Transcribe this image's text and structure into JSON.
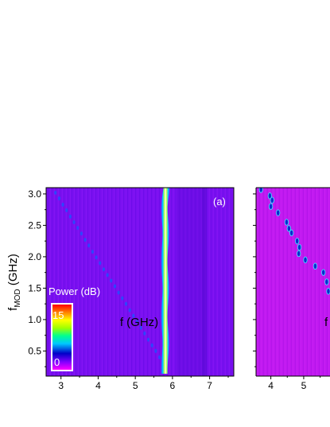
{
  "chart_data": [
    {
      "type": "heatmap",
      "panel_label": "(a)",
      "xlabel": "f (GHz)",
      "ylabel_main": "f",
      "ylabel_sub": "MOD",
      "ylabel_unit": " (GHz)",
      "xlim": [
        2.6,
        7.65
      ],
      "ylim": [
        0.1,
        3.1
      ],
      "xticks": [
        "3",
        "4",
        "5",
        "6",
        "7"
      ],
      "yticks": [
        "0.5",
        "1.0",
        "1.5",
        "2.0",
        "2.5",
        "3.0"
      ],
      "background_color": "#7a10f0",
      "colorbar": {
        "title": "Power (dB)",
        "max_label": "15",
        "min_label": "0",
        "range": [
          0,
          15
        ]
      },
      "carrier_line": {
        "f_GHz": 5.8,
        "fmod_range": [
          0.1,
          3.1
        ],
        "level_dB": 15
      },
      "sideband_points": [
        {
          "f": 2.85,
          "fmod": 3.02
        },
        {
          "f": 2.95,
          "fmod": 2.93
        },
        {
          "f": 3.05,
          "fmod": 2.83
        },
        {
          "f": 3.15,
          "fmod": 2.74
        },
        {
          "f": 3.25,
          "fmod": 2.64
        },
        {
          "f": 3.35,
          "fmod": 2.55
        },
        {
          "f": 3.45,
          "fmod": 2.46
        },
        {
          "f": 3.55,
          "fmod": 2.37
        },
        {
          "f": 3.65,
          "fmod": 2.27
        },
        {
          "f": 3.75,
          "fmod": 2.18
        },
        {
          "f": 3.85,
          "fmod": 2.08
        },
        {
          "f": 3.95,
          "fmod": 1.99
        },
        {
          "f": 4.05,
          "fmod": 1.9
        },
        {
          "f": 4.15,
          "fmod": 1.8
        },
        {
          "f": 4.25,
          "fmod": 1.71
        },
        {
          "f": 4.35,
          "fmod": 1.62
        },
        {
          "f": 4.45,
          "fmod": 1.53
        },
        {
          "f": 4.55,
          "fmod": 1.43
        },
        {
          "f": 4.65,
          "fmod": 1.34
        },
        {
          "f": 4.75,
          "fmod": 1.25
        },
        {
          "f": 4.85,
          "fmod": 1.15
        },
        {
          "f": 4.95,
          "fmod": 1.06
        },
        {
          "f": 5.05,
          "fmod": 0.97
        },
        {
          "f": 5.15,
          "fmod": 0.87
        },
        {
          "f": 5.25,
          "fmod": 0.78
        },
        {
          "f": 5.35,
          "fmod": 0.68
        },
        {
          "f": 5.45,
          "fmod": 0.59
        },
        {
          "f": 5.55,
          "fmod": 0.5
        },
        {
          "f": 5.65,
          "fmod": 0.4
        }
      ]
    },
    {
      "type": "heatmap",
      "xlabel": "f",
      "xlim": [
        3.55,
        5.8
      ],
      "ylim": [
        0.1,
        3.1
      ],
      "xticks": [
        "4",
        "5"
      ],
      "background_color": "#c018f0",
      "sideband_points": [
        {
          "f": 3.7,
          "fmod": 3.07
        },
        {
          "f": 3.97,
          "fmod": 2.97
        },
        {
          "f": 4.04,
          "fmod": 2.9
        },
        {
          "f": 4.0,
          "fmod": 2.8
        },
        {
          "f": 4.22,
          "fmod": 2.7
        },
        {
          "f": 4.48,
          "fmod": 2.55
        },
        {
          "f": 4.55,
          "fmod": 2.45
        },
        {
          "f": 4.63,
          "fmod": 2.38
        },
        {
          "f": 4.8,
          "fmod": 2.25
        },
        {
          "f": 4.87,
          "fmod": 2.15
        },
        {
          "f": 4.85,
          "fmod": 2.05
        },
        {
          "f": 5.05,
          "fmod": 1.95
        },
        {
          "f": 5.35,
          "fmod": 1.85
        },
        {
          "f": 5.6,
          "fmod": 1.75
        },
        {
          "f": 5.7,
          "fmod": 1.6
        },
        {
          "f": 5.75,
          "fmod": 1.45
        }
      ]
    }
  ]
}
